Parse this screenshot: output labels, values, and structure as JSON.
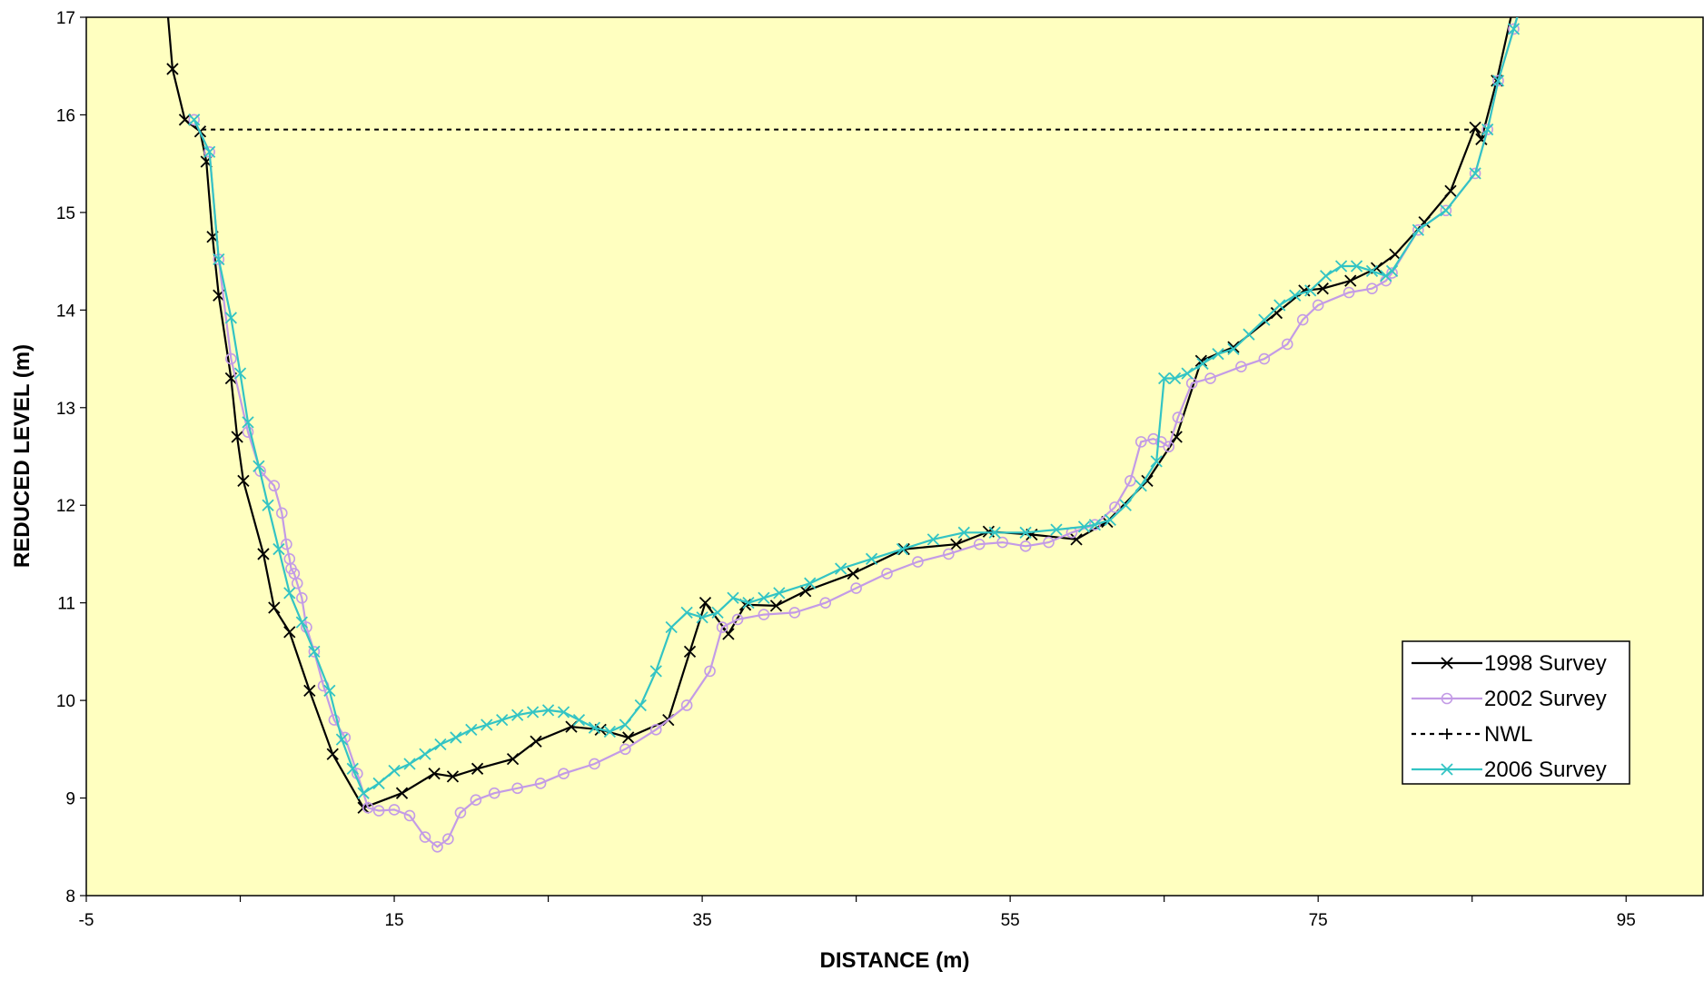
{
  "chart_data": {
    "type": "line",
    "title": "",
    "xlabel": "DISTANCE (m)",
    "ylabel": "REDUCED LEVEL (m)",
    "xlim": [
      -5,
      100
    ],
    "ylim": [
      8,
      17
    ],
    "x_ticks": [
      -5,
      15,
      35,
      55,
      75,
      95
    ],
    "x_tick_labels": [
      "-5",
      "15",
      "35",
      "55",
      "75",
      "95"
    ],
    "y_ticks": [
      8,
      9,
      10,
      11,
      12,
      13,
      14,
      15,
      16,
      17
    ],
    "y_tick_labels": [
      "8",
      "9",
      "10",
      "11",
      "12",
      "13",
      "14",
      "15",
      "16",
      "17"
    ],
    "grid": false,
    "legend_position": "bottom-right",
    "colors": {
      "plot_background": "#FFFFC0",
      "frame": "#000000"
    },
    "series": [
      {
        "name": "1998 Survey",
        "color": "#000000",
        "marker": "x",
        "line": "solid",
        "x": [
          0.2,
          0.6,
          1.4,
          2.4,
          2.8,
          3.2,
          3.6,
          4.4,
          4.8,
          5.2,
          6.5,
          7.2,
          8.2,
          9.5,
          11.0,
          13.0,
          15.5,
          17.6,
          18.8,
          20.4,
          22.7,
          24.2,
          26.5,
          28.4,
          30.2,
          32.8,
          34.2,
          35.2,
          36.7,
          37.8,
          39.8,
          41.7,
          44.8,
          48.1,
          51.5,
          53.6,
          56.4,
          59.3,
          61.3,
          63.9,
          65.8,
          67.4,
          69.5,
          72.3,
          74.1,
          75.3,
          77.1,
          78.8,
          80.0,
          81.9,
          83.6,
          85.2,
          85.6,
          86.6,
          87.8
        ],
        "y": [
          17.2,
          16.47,
          15.95,
          15.83,
          15.52,
          14.75,
          14.15,
          13.3,
          12.7,
          12.25,
          11.5,
          10.95,
          10.7,
          10.1,
          9.45,
          8.9,
          9.05,
          9.25,
          9.22,
          9.3,
          9.4,
          9.58,
          9.73,
          9.7,
          9.62,
          9.8,
          10.5,
          11.0,
          10.68,
          10.98,
          10.97,
          11.12,
          11.3,
          11.55,
          11.6,
          11.73,
          11.7,
          11.65,
          11.83,
          12.25,
          12.7,
          13.48,
          13.62,
          13.97,
          14.2,
          14.22,
          14.3,
          14.43,
          14.57,
          14.9,
          15.22,
          15.87,
          15.75,
          16.35,
          17.2
        ]
      },
      {
        "name": "2002 Survey",
        "color": "#C39BE6",
        "marker": "o",
        "line": "solid",
        "x": [
          2.0,
          3.0,
          3.6,
          4.4,
          5.5,
          6.3,
          7.2,
          7.7,
          8.0,
          8.2,
          8.3,
          8.5,
          8.7,
          9.0,
          9.3,
          9.8,
          10.4,
          11.1,
          11.8,
          12.6,
          13.3,
          14.0,
          15.0,
          16.0,
          17.0,
          17.8,
          18.5,
          19.3,
          20.3,
          21.5,
          23.0,
          24.5,
          26.0,
          28.0,
          30.0,
          32.0,
          34.0,
          35.5,
          36.3,
          37.3,
          39.0,
          41.0,
          43.0,
          45.0,
          47.0,
          49.0,
          51.0,
          53.0,
          54.5,
          56.0,
          57.5,
          59.0,
          60.5,
          61.8,
          62.8,
          63.5,
          64.3,
          64.8,
          65.3,
          65.9,
          66.8,
          68.0,
          70.0,
          71.5,
          73.0,
          74.0,
          75.0,
          77.0,
          78.5,
          79.4,
          79.8,
          81.5,
          83.3,
          85.2,
          86.0,
          86.7,
          87.7,
          88.3
        ],
        "y": [
          15.95,
          15.62,
          14.52,
          13.5,
          12.75,
          12.35,
          12.2,
          11.92,
          11.6,
          11.45,
          11.35,
          11.3,
          11.2,
          11.05,
          10.75,
          10.5,
          10.15,
          9.8,
          9.62,
          9.25,
          8.9,
          8.87,
          8.88,
          8.82,
          8.6,
          8.5,
          8.58,
          8.85,
          8.98,
          9.05,
          9.1,
          9.15,
          9.25,
          9.35,
          9.5,
          9.7,
          9.95,
          10.3,
          10.75,
          10.83,
          10.88,
          10.9,
          11.0,
          11.15,
          11.3,
          11.42,
          11.5,
          11.6,
          11.62,
          11.58,
          11.62,
          11.72,
          11.8,
          11.98,
          12.25,
          12.65,
          12.68,
          12.65,
          12.6,
          12.9,
          13.25,
          13.3,
          13.42,
          13.5,
          13.65,
          13.9,
          14.05,
          14.18,
          14.22,
          14.3,
          14.38,
          14.82,
          15.02,
          15.4,
          15.85,
          16.35,
          16.88,
          17.2
        ]
      },
      {
        "name": "NWL",
        "color": "#000000",
        "marker": "+",
        "line": "dashed",
        "x": [
          2.5,
          85.6
        ],
        "y": [
          15.85,
          15.85
        ]
      },
      {
        "name": "2006 Survey",
        "color": "#33C4C4",
        "marker": "x",
        "line": "solid",
        "x": [
          2.0,
          3.0,
          3.6,
          4.4,
          5.0,
          5.5,
          6.2,
          6.8,
          7.5,
          8.2,
          9.0,
          9.8,
          10.8,
          11.6,
          12.3,
          13.0,
          14.0,
          15.0,
          16.0,
          17.0,
          18.0,
          19.0,
          20.0,
          21.0,
          22.0,
          23.0,
          24.0,
          25.0,
          26.0,
          27.0,
          28.0,
          29.0,
          30.0,
          31.0,
          32.0,
          33.0,
          34.0,
          35.0,
          36.0,
          37.0,
          38.0,
          39.0,
          40.0,
          42.0,
          44.0,
          46.0,
          48.0,
          50.0,
          52.0,
          54.0,
          56.0,
          58.0,
          59.8,
          60.5,
          61.5,
          62.5,
          63.5,
          64.5,
          65.0,
          65.7,
          66.5,
          67.5,
          68.5,
          69.5,
          70.5,
          71.5,
          72.5,
          73.5,
          74.5,
          75.5,
          76.5,
          77.5,
          78.5,
          79.4,
          79.8,
          81.5,
          83.3,
          85.2,
          86.0,
          86.7,
          87.7,
          88.3
        ],
        "y": [
          15.95,
          15.62,
          14.52,
          13.92,
          13.35,
          12.85,
          12.4,
          12.0,
          11.55,
          11.1,
          10.8,
          10.5,
          10.1,
          9.6,
          9.3,
          9.05,
          9.15,
          9.28,
          9.35,
          9.45,
          9.55,
          9.62,
          9.7,
          9.75,
          9.8,
          9.85,
          9.88,
          9.9,
          9.88,
          9.8,
          9.72,
          9.68,
          9.75,
          9.95,
          10.3,
          10.75,
          10.9,
          10.85,
          10.9,
          11.05,
          11.0,
          11.05,
          11.1,
          11.2,
          11.35,
          11.45,
          11.55,
          11.65,
          11.72,
          11.72,
          11.72,
          11.75,
          11.78,
          11.8,
          11.85,
          12.0,
          12.2,
          12.45,
          13.3,
          13.3,
          13.35,
          13.45,
          13.55,
          13.6,
          13.75,
          13.9,
          14.05,
          14.15,
          14.2,
          14.35,
          14.45,
          14.45,
          14.4,
          14.35,
          14.4,
          14.82,
          15.02,
          15.4,
          15.85,
          16.35,
          16.88,
          17.2
        ]
      }
    ]
  }
}
